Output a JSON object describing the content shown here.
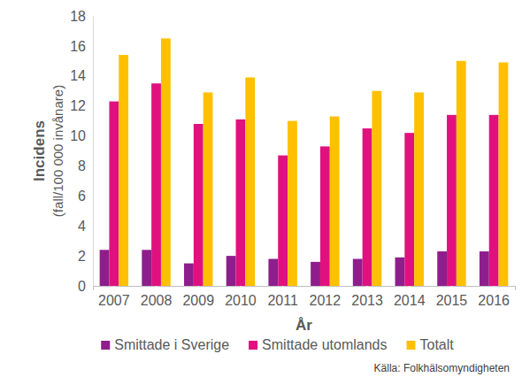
{
  "chart_data": {
    "type": "bar",
    "x_label": "År",
    "y_label": [
      "Incidens",
      "(fall/100 000 invånare)"
    ],
    "annotations": [
      "Källa: Folkhälsomyndigheten"
    ],
    "categories": [
      "2007",
      "2008",
      "2009",
      "2010",
      "2011",
      "2012",
      "2013",
      "2014",
      "2015",
      "2016"
    ],
    "series": [
      {
        "name": "Smittade i Sverige",
        "color": "#8e1e8c",
        "values": [
          2.4,
          2.4,
          1.5,
          2.0,
          1.8,
          1.6,
          1.8,
          1.9,
          2.3,
          2.3
        ]
      },
      {
        "name": "Smittade utomlands",
        "color": "#e0117f",
        "values": [
          12.3,
          13.5,
          10.8,
          11.1,
          8.7,
          9.3,
          10.5,
          10.2,
          11.4,
          11.4
        ]
      },
      {
        "name": "Totalt",
        "color": "#ffc000",
        "values": [
          15.4,
          16.5,
          12.9,
          13.9,
          11.0,
          11.3,
          13.0,
          12.9,
          15.0,
          14.9
        ]
      }
    ],
    "ylim": [
      0,
      18
    ],
    "yticks": [
      0,
      2,
      4,
      6,
      8,
      10,
      12,
      14,
      16,
      18
    ],
    "grid": false,
    "legend": "bottom"
  }
}
